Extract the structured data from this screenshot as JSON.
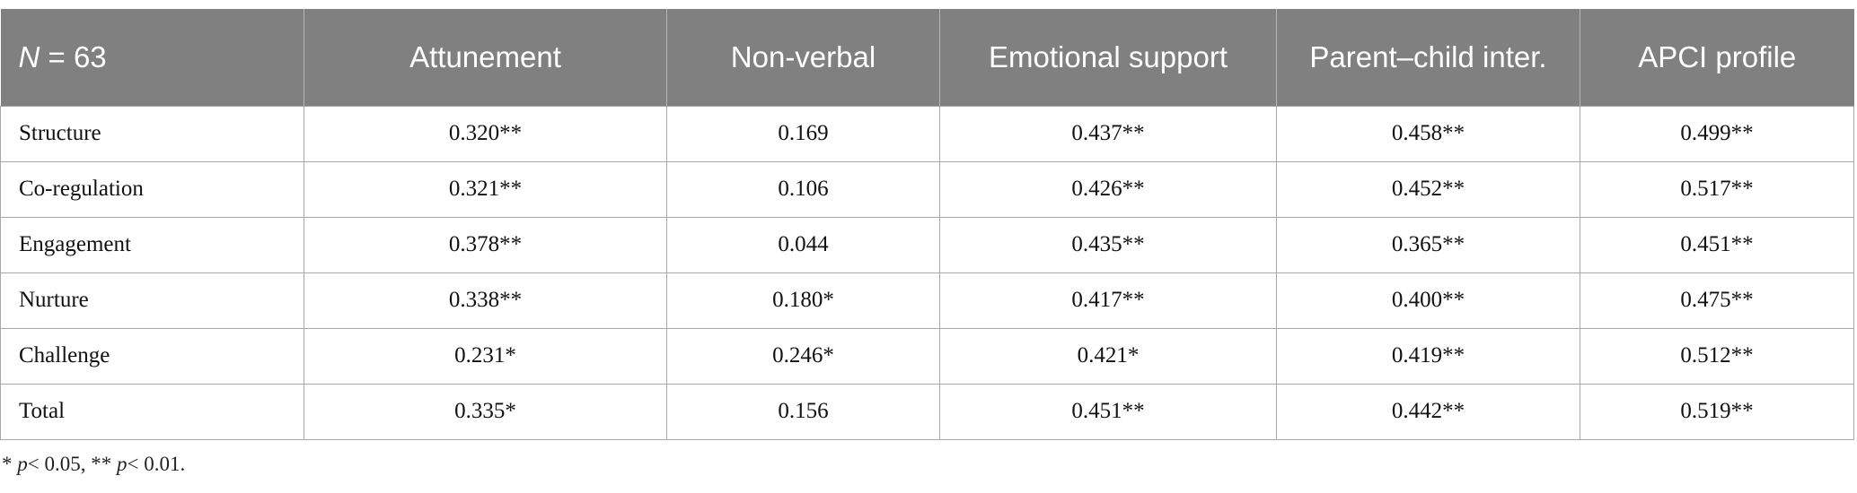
{
  "table": {
    "header": {
      "n_label": "N",
      "n_value": " = 63",
      "columns": [
        "Attunement",
        "Non-verbal",
        "Emotional support",
        "Parent–child inter.",
        "APCI profile"
      ]
    },
    "rows": [
      {
        "label": "Structure",
        "values": [
          "0.320**",
          "0.169",
          "0.437**",
          "0.458**",
          "0.499**"
        ]
      },
      {
        "label": "Co-regulation",
        "values": [
          "0.321**",
          "0.106",
          "0.426**",
          "0.452**",
          "0.517**"
        ]
      },
      {
        "label": "Engagement",
        "values": [
          "0.378**",
          "0.044",
          "0.435**",
          "0.365**",
          "0.451**"
        ]
      },
      {
        "label": "Nurture",
        "values": [
          "0.338**",
          "0.180*",
          "0.417**",
          "0.400**",
          "0.475**"
        ]
      },
      {
        "label": "Challenge",
        "values": [
          "0.231*",
          "0.246*",
          "0.421*",
          "0.419**",
          "0.512**"
        ]
      },
      {
        "label": "Total",
        "values": [
          "0.335*",
          "0.156",
          "0.451**",
          "0.442**",
          "0.519**"
        ]
      }
    ]
  },
  "footnote": {
    "mark1": "* ",
    "p1": "p",
    "text1": "< 0.05, ** ",
    "p2": "p",
    "text2": "< 0.01."
  }
}
